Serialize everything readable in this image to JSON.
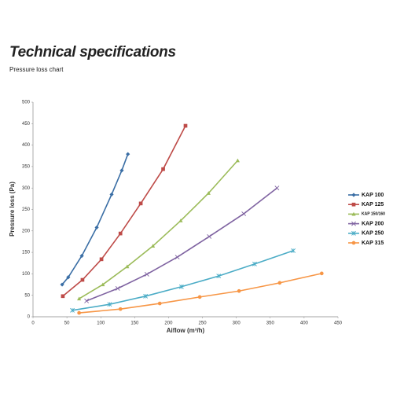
{
  "header": {
    "title": "Technical specifications",
    "subtitle": "Pressure loss chart"
  },
  "chart_data": {
    "type": "line",
    "x_label": "Aiflow (m³/h)",
    "y_label": "Pressure loss (Pa)",
    "xlim": [
      0,
      450
    ],
    "xticks": [
      0,
      50,
      100,
      150,
      200,
      250,
      300,
      350,
      400,
      450
    ],
    "ylim": [
      0,
      500
    ],
    "yticks": [
      0,
      50,
      100,
      150,
      200,
      250,
      300,
      350,
      400,
      450,
      500
    ],
    "grid": false,
    "legend": "right",
    "series": [
      {
        "name": "KAP 100",
        "color": "#3a6ea5",
        "marker": "diamond",
        "x": [
          43,
          52,
          72,
          94,
          116,
          131,
          140
        ],
        "values": [
          75,
          92,
          142,
          208,
          285,
          341,
          379
        ]
      },
      {
        "name": "KAP 125",
        "color": "#be4b48",
        "marker": "square",
        "x": [
          44,
          73,
          101,
          129,
          159,
          192,
          225
        ],
        "values": [
          48,
          86,
          134,
          194,
          264,
          344,
          445
        ]
      },
      {
        "name": "KAP 150/160",
        "color": "#9bbb59",
        "marker": "triangle",
        "x": [
          68,
          103,
          139,
          177,
          218,
          259,
          302
        ],
        "values": [
          42,
          75,
          117,
          165,
          224,
          288,
          364
        ]
      },
      {
        "name": "KAP 200",
        "color": "#7f63a1",
        "marker": "x",
        "x": [
          79,
          125,
          168,
          213,
          260,
          311,
          360
        ],
        "values": [
          37,
          66,
          99,
          139,
          187,
          240,
          300
        ]
      },
      {
        "name": "KAP 250",
        "color": "#4bacc6",
        "marker": "star",
        "x": [
          58,
          113,
          166,
          219,
          274,
          327,
          384
        ],
        "values": [
          15,
          29,
          48,
          70,
          95,
          123,
          154
        ]
      },
      {
        "name": "KAP 315",
        "color": "#f79646",
        "marker": "circle",
        "x": [
          68,
          129,
          187,
          246,
          304,
          364,
          426
        ],
        "values": [
          9,
          18,
          31,
          46,
          60,
          79,
          101
        ]
      }
    ]
  }
}
